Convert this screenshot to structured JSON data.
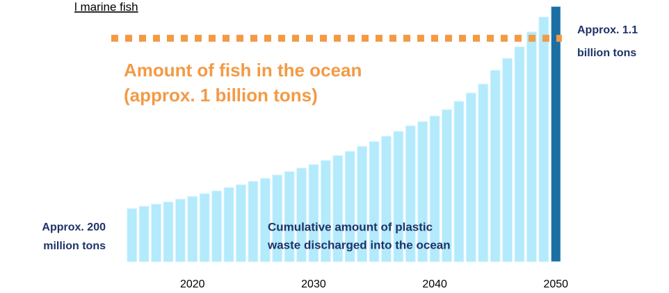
{
  "chart_data": {
    "type": "bar",
    "title": "l marine fish",
    "categories": [
      null,
      null,
      null,
      null,
      null,
      "2020",
      null,
      null,
      null,
      null,
      null,
      null,
      null,
      null,
      null,
      "2030",
      null,
      null,
      null,
      null,
      null,
      null,
      null,
      null,
      null,
      "2040",
      null,
      null,
      null,
      null,
      null,
      null,
      null,
      null,
      null,
      "2050"
    ],
    "values": [
      200,
      211,
      221,
      231,
      244,
      257,
      270,
      283,
      299,
      312,
      328,
      342,
      358,
      374,
      390,
      407,
      426,
      449,
      469,
      492,
      515,
      540,
      563,
      589,
      609,
      635,
      665,
      704,
      743,
      785,
      850,
      906,
      960,
      1030,
      1100,
      1150
    ],
    "colors": [
      "#b3eafc",
      "#b3eafc",
      "#b3eafc",
      "#b3eafc",
      "#b3eafc",
      "#b3eafc",
      "#b3eafc",
      "#b3eafc",
      "#b3eafc",
      "#b3eafc",
      "#b3eafc",
      "#b3eafc",
      "#b3eafc",
      "#b3eafc",
      "#b3eafc",
      "#b3eafc",
      "#b3eafc",
      "#b3eafc",
      "#b3eafc",
      "#b3eafc",
      "#b3eafc",
      "#b3eafc",
      "#b3eafc",
      "#b3eafc",
      "#b3eafc",
      "#b3eafc",
      "#b3eafc",
      "#b3eafc",
      "#b3eafc",
      "#b3eafc",
      "#b3eafc",
      "#b3eafc",
      "#b3eafc",
      "#b3eafc",
      "#b3eafc",
      "#1d6fa3"
    ],
    "ylim": [
      -50,
      1180
    ],
    "reference_line": {
      "value": 1000,
      "color": "#f39a45",
      "label": [
        "Amount of fish in the ocean",
        "(approx. 1 billion tons)"
      ]
    },
    "annotations": [
      {
        "lines": [
          "Approx. 1.1",
          "billion tons"
        ]
      },
      {
        "lines": [
          "Approx. 200",
          "million tons"
        ]
      },
      {
        "lines": [
          "Cumulative amount of plastic",
          "waste discharged into the ocean"
        ]
      }
    ]
  }
}
